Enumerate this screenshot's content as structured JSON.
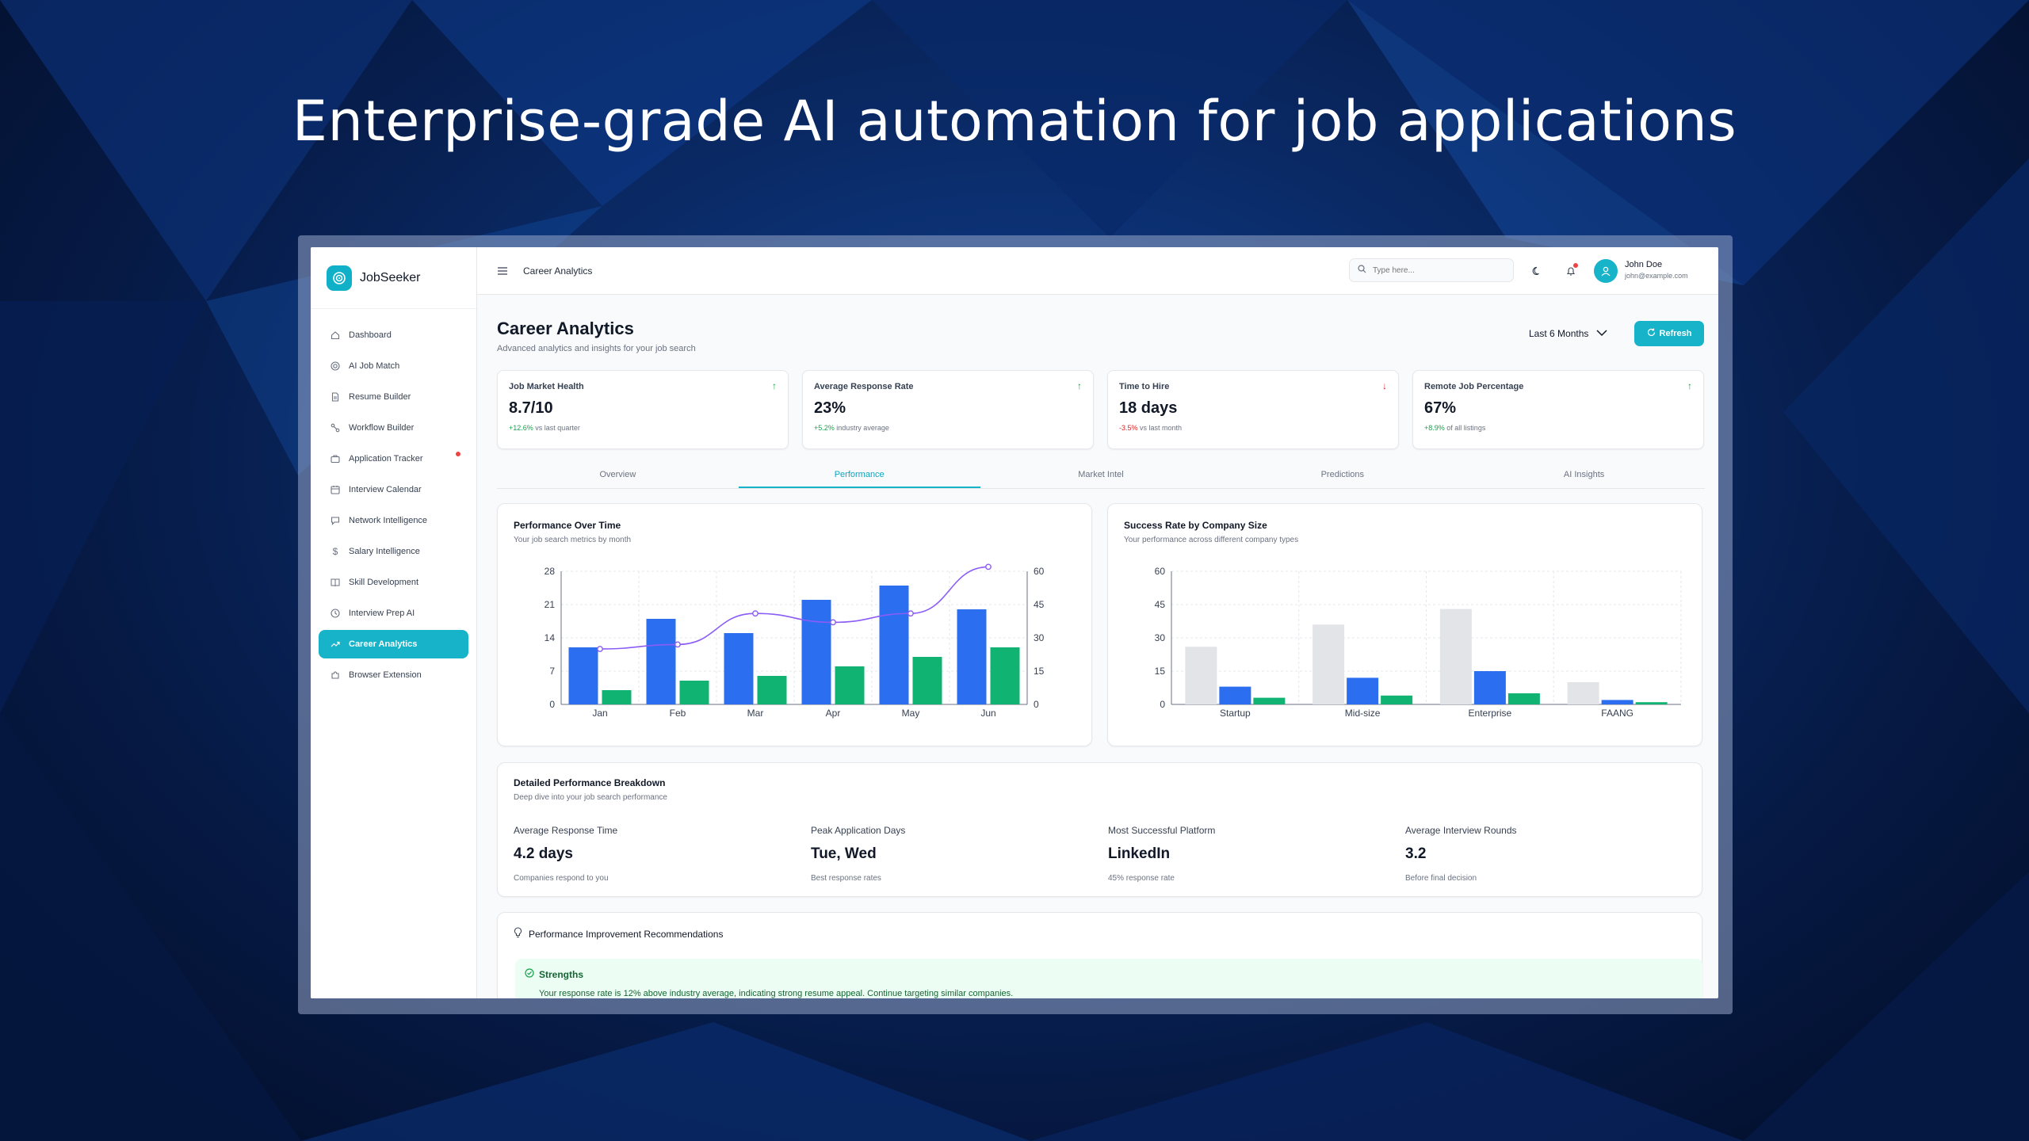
{
  "headline": "Enterprise-grade AI automation for job applications",
  "brand": {
    "name": "JobSeeker",
    "color": "#0fb0c8"
  },
  "sidebar": {
    "items": [
      {
        "label": "Dashboard",
        "icon": "home-icon"
      },
      {
        "label": "AI Job Match",
        "icon": "target-icon"
      },
      {
        "label": "Resume Builder",
        "icon": "document-icon"
      },
      {
        "label": "Workflow Builder",
        "icon": "workflow-icon"
      },
      {
        "label": "Application Tracker",
        "icon": "briefcase-icon",
        "has_notification": true
      },
      {
        "label": "Interview Calendar",
        "icon": "calendar-icon"
      },
      {
        "label": "Network Intelligence",
        "icon": "chat-icon"
      },
      {
        "label": "Salary Intelligence",
        "icon": "dollar-icon"
      },
      {
        "label": "Skill Development",
        "icon": "book-icon"
      },
      {
        "label": "Interview Prep AI",
        "icon": "clock-icon"
      },
      {
        "label": "Career Analytics",
        "icon": "trend-icon",
        "active": true
      },
      {
        "label": "Browser Extension",
        "icon": "puzzle-icon"
      }
    ]
  },
  "topbar": {
    "title": "Career Analytics",
    "search_placeholder": "Type here...",
    "user": {
      "name": "John Doe",
      "email": "john@example.com"
    }
  },
  "header": {
    "title": "Career Analytics",
    "subtitle": "Advanced analytics and insights for your job search",
    "period": "Last 6 Months",
    "refresh_label": "Refresh"
  },
  "kpis": [
    {
      "label": "Job Market Health",
      "value": "8.7/10",
      "change": "+12.6%",
      "note": "vs last quarter",
      "trend": "up"
    },
    {
      "label": "Average Response Rate",
      "value": "23%",
      "change": "+5.2%",
      "note": "industry average",
      "trend": "up"
    },
    {
      "label": "Time to Hire",
      "value": "18 days",
      "change": "-3.5%",
      "note": "vs last month",
      "trend": "down"
    },
    {
      "label": "Remote Job Percentage",
      "value": "67%",
      "change": "+8.9%",
      "note": "of all listings",
      "trend": "up"
    }
  ],
  "tabs": [
    "Overview",
    "Performance",
    "Market Intel",
    "Predictions",
    "AI Insights"
  ],
  "active_tab": "Performance",
  "colors": {
    "accent": "#17b3c9",
    "blue": "#2b6ff0",
    "green": "#10b371",
    "gray": "#e2e4e8",
    "line": "#8b5cf6",
    "up": "#16a34a",
    "down": "#dc2626"
  },
  "perf_card": {
    "title": "Performance Over Time",
    "subtitle": "Your job search metrics by month"
  },
  "size_card": {
    "title": "Success Rate by Company Size",
    "subtitle": "Your performance across different company types"
  },
  "chart_data": [
    {
      "type": "bar",
      "title": "Performance Over Time",
      "categories": [
        "Jan",
        "Feb",
        "Mar",
        "Apr",
        "May",
        "Jun"
      ],
      "yticks_left": [
        0,
        7,
        14,
        21,
        28
      ],
      "yticks_right": [
        0,
        15,
        30,
        45,
        60
      ],
      "ylim_left": [
        0,
        28
      ],
      "ylim_right": [
        0,
        60
      ],
      "grid": true,
      "series": [
        {
          "values": [
            12,
            18,
            15,
            22,
            25,
            20
          ],
          "color": "#2b6ff0",
          "axis": "left"
        },
        {
          "values": [
            3,
            5,
            6,
            8,
            10,
            12
          ],
          "color": "#10b371",
          "axis": "left"
        },
        {
          "type": "line",
          "values": [
            25,
            27,
            41,
            37,
            41,
            62
          ],
          "color": "#8b5cf6",
          "axis": "right"
        }
      ]
    },
    {
      "type": "bar",
      "title": "Success Rate by Company Size",
      "categories": [
        "Startup",
        "Mid-size",
        "Enterprise",
        "FAANG"
      ],
      "yticks": [
        0,
        15,
        30,
        45,
        60
      ],
      "ylim": [
        0,
        60
      ],
      "grid": true,
      "series": [
        {
          "values": [
            26,
            36,
            43,
            10
          ],
          "color": "#e2e4e8"
        },
        {
          "values": [
            8,
            12,
            15,
            2
          ],
          "color": "#2b6ff0"
        },
        {
          "values": [
            3,
            4,
            5,
            1
          ],
          "color": "#10b371"
        }
      ]
    }
  ],
  "breakdown": {
    "title": "Detailed Performance Breakdown",
    "subtitle": "Deep dive into your job search performance",
    "metrics": [
      {
        "label": "Average Response Time",
        "value": "4.2 days",
        "note": "Companies respond to you"
      },
      {
        "label": "Peak Application Days",
        "value": "Tue, Wed",
        "note": "Best response rates"
      },
      {
        "label": "Most Successful Platform",
        "value": "LinkedIn",
        "note": "45% response rate"
      },
      {
        "label": "Average Interview Rounds",
        "value": "3.2",
        "note": "Before final decision"
      }
    ]
  },
  "recommendations": {
    "title": "Performance Improvement Recommendations",
    "strengths_title": "Strengths",
    "strengths_text": "Your response rate is 12% above industry average, indicating strong resume appeal. Continue targeting similar companies."
  }
}
